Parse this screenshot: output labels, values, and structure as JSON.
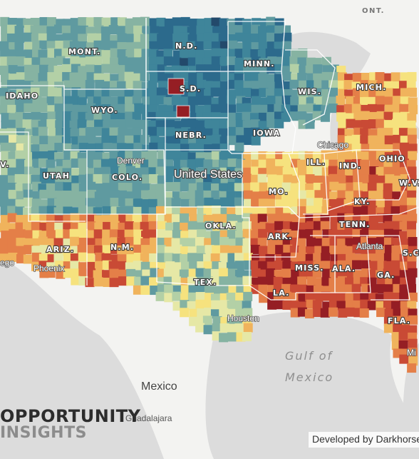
{
  "colors": {
    "background": "#eeeeee",
    "land": "#f3f3f1",
    "water": "#dcdcdc",
    "scale": [
      "#23496b",
      "#2c6a8c",
      "#3f859a",
      "#5f9aa0",
      "#86b3a2",
      "#b3d0a6",
      "#e6e8a6",
      "#f6e27e",
      "#f0b35c",
      "#e47f48",
      "#c94a35",
      "#951e24"
    ]
  },
  "map_labels": {
    "ont": "ONT.",
    "mont": "MONT.",
    "nd": "N.D.",
    "minn": "MINN.",
    "mich": "MICH.",
    "idaho": "IDAHO",
    "sd": "S.D.",
    "wis": "WIS.",
    "wyo": "WYO.",
    "nebr": "NEBR.",
    "iowa": "IOWA",
    "ohio": "OHIO",
    "utah": "UTAH",
    "colo": "COLO.",
    "ill": "ILL.",
    "ind": "IND.",
    "mo": "MO.",
    "ky": "KY.",
    "wv": "W.V.",
    "nv": "V.",
    "tenn": "TENN.",
    "okla": "OKLA.",
    "ark": "ARK.",
    "ariz": "ARIZ.",
    "nm": "N.M.",
    "miss": "MISS.",
    "ala": "ALA.",
    "ga": "GA.",
    "sc": "S.C",
    "tex": "TEX.",
    "la": "LA.",
    "fla": "FLA."
  },
  "cities": {
    "denver": "Denver",
    "chicago": "Chicago",
    "atlanta": "Atlanta",
    "phoenix": "Phoenix",
    "houston": "Houston",
    "vegas": "ego",
    "miami": "Mi"
  },
  "country_label": "United States",
  "mexico_label": "Mexico",
  "guadalajara_label": "Guadalajara",
  "gulf_label_line1": "Gulf of",
  "gulf_label_line2": "Mexico",
  "logo": {
    "line1": "OPPORTUNITY",
    "line2": "INSIGHTS"
  },
  "credit": "Developed by Darkhorse"
}
